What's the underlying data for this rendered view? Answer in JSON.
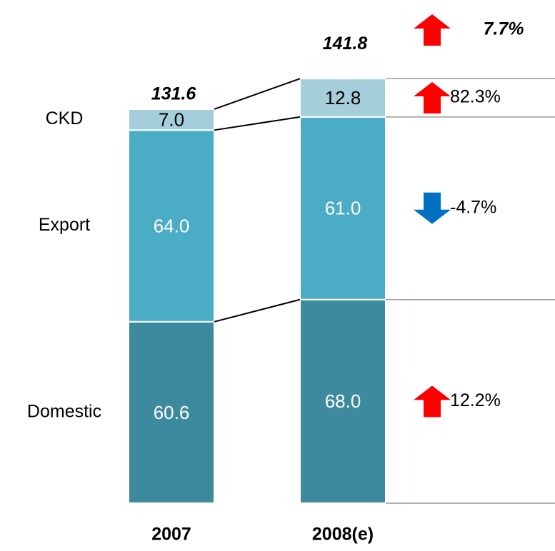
{
  "chart_data": {
    "type": "stacked_bar",
    "categories": [
      "2007",
      "2008(e)"
    ],
    "series": [
      {
        "name": "Domestic",
        "color": "#3d8a9e",
        "label_color": "#ffffff",
        "values": [
          60.6,
          68.0
        ],
        "value_labels": [
          "60.6",
          "68.0"
        ]
      },
      {
        "name": "Export",
        "color": "#4bacc6",
        "label_color": "#ffffff",
        "values": [
          64.0,
          61.0
        ],
        "value_labels": [
          "64.0",
          "61.0"
        ]
      },
      {
        "name": "CKD",
        "color": "#a5cedb",
        "label_color": "#000000",
        "values": [
          7.0,
          12.8
        ],
        "value_labels": [
          "7.0",
          "12.8"
        ]
      }
    ],
    "totals": [
      131.6,
      141.8
    ],
    "total_change": {
      "label": "7.7%",
      "direction": "up"
    },
    "series_changes": [
      {
        "label": "12.2%",
        "direction": "up"
      },
      {
        "label": "-4.7%",
        "direction": "down"
      },
      {
        "label": "82.3%",
        "direction": "up"
      }
    ]
  }
}
